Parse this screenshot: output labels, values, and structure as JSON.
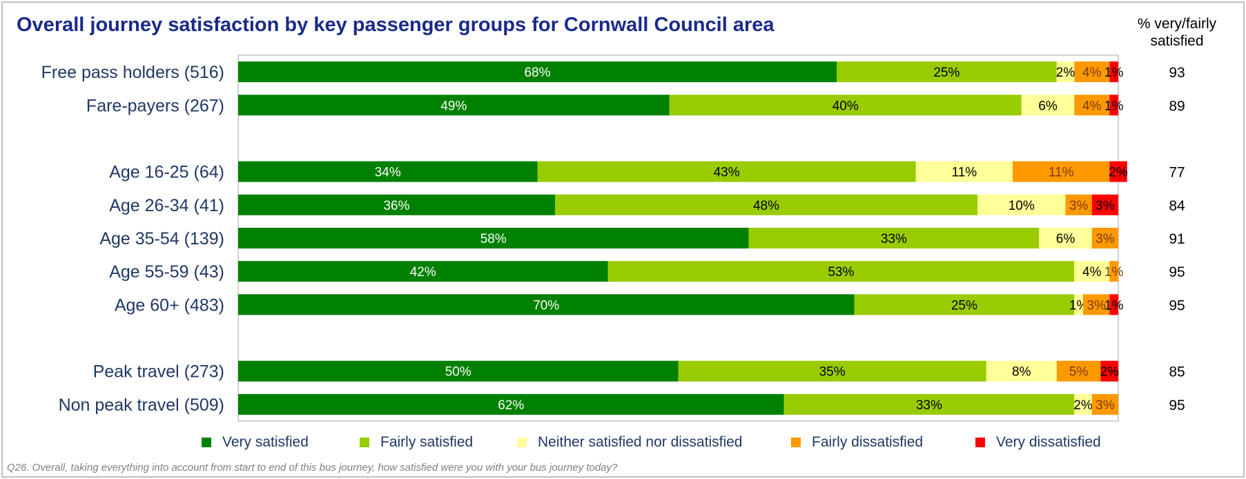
{
  "title": "Overall journey satisfaction by key passenger groups for Cornwall Council area",
  "side_header": {
    "line1": "% very/fairly",
    "line2": "satisfied"
  },
  "footnote": "Q26.  Overall, taking everything into account from start to end of this bus journey, how satisfied were you with your bus journey today?",
  "colors": {
    "very_satisfied": "#008000",
    "fairly_satisfied": "#99cc00",
    "neither": "#ffff99",
    "fairly_dissatisfied": "#ff9900",
    "very_dissatisfied": "#ff0000"
  },
  "chart_data": {
    "type": "bar",
    "orientation": "horizontal",
    "stacked": true,
    "xlim": [
      0,
      100
    ],
    "categories": [
      "Free pass holders (516)",
      "Fare-payers (267)",
      "",
      "Age 16-25 (64)",
      "Age 26-34 (41)",
      "Age 35-54 (139)",
      "Age 55-59 (43)",
      "Age 60+ (483)",
      "",
      "Peak travel (273)",
      "Non peak travel (509)"
    ],
    "series": [
      {
        "name": "Very satisfied",
        "values": [
          68,
          49,
          null,
          34,
          36,
          58,
          42,
          70,
          null,
          50,
          62
        ],
        "labels": [
          "68%",
          "49%",
          "",
          "34%",
          "36%",
          "58%",
          "42%",
          "70%",
          "",
          "50%",
          "62%"
        ]
      },
      {
        "name": "Fairly satisfied",
        "values": [
          25,
          40,
          null,
          43,
          48,
          33,
          53,
          25,
          null,
          35,
          33
        ],
        "labels": [
          "25%",
          "40%",
          "",
          "43%",
          "48%",
          "33%",
          "53%",
          "25%",
          "",
          "35%",
          "33%"
        ]
      },
      {
        "name": "Neither satisfied nor dissatisfied",
        "values": [
          2,
          6,
          null,
          11,
          10,
          6,
          4,
          1,
          null,
          8,
          2
        ],
        "labels": [
          "2%",
          "6%",
          "",
          "11%",
          "10%",
          "6%",
          "4%",
          "1%",
          "",
          "8%",
          "2%"
        ]
      },
      {
        "name": "Fairly dissatisfied",
        "values": [
          4,
          4,
          null,
          11,
          3,
          3,
          1,
          3,
          null,
          5,
          3
        ],
        "labels": [
          "4%",
          "4%",
          "",
          "11%",
          "3%",
          "3%",
          "1%",
          "3%",
          "",
          "5%",
          "3%"
        ]
      },
      {
        "name": "Very dissatisfied",
        "values": [
          1,
          1,
          null,
          2,
          3,
          0,
          0,
          1,
          null,
          2,
          0
        ],
        "labels": [
          "1%",
          "1%",
          "",
          "2%",
          "3%",
          "",
          "",
          "1%",
          "",
          "2%",
          ""
        ]
      }
    ],
    "very_fairly_satisfied": [
      "93",
      "89",
      "",
      "77",
      "84",
      "91",
      "95",
      "95",
      "",
      "85",
      "95"
    ],
    "legend": {
      "position": "bottom"
    },
    "grid": false
  }
}
